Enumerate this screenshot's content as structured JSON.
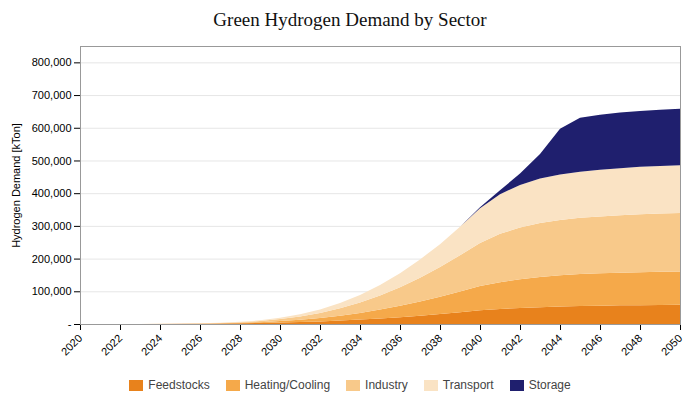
{
  "chart_data": {
    "type": "area",
    "stacked": true,
    "title": "Green Hydrogen Demand by Sector",
    "ylabel": "Hydrogen Demand [kTon]",
    "x": [
      2020,
      2021,
      2022,
      2023,
      2024,
      2025,
      2026,
      2027,
      2028,
      2029,
      2030,
      2031,
      2032,
      2033,
      2034,
      2035,
      2036,
      2037,
      2038,
      2039,
      2040,
      2041,
      2042,
      2043,
      2044,
      2045,
      2046,
      2047,
      2048,
      2049,
      2050
    ],
    "series": [
      {
        "name": "Feedstocks",
        "color": "#E8821C",
        "values": [
          0,
          0,
          50,
          100,
          200,
          400,
          700,
          1200,
          2000,
          3000,
          4500,
          6000,
          8000,
          10500,
          13500,
          17000,
          21000,
          25500,
          30500,
          36000,
          42000,
          46000,
          49000,
          51500,
          53500,
          55000,
          56000,
          57000,
          57500,
          58000,
          58500
        ]
      },
      {
        "name": "Heating/Cooling",
        "color": "#F5A94A",
        "values": [
          0,
          0,
          30,
          60,
          120,
          250,
          500,
          900,
          1600,
          2700,
          4500,
          7000,
          10500,
          15000,
          20500,
          27000,
          34500,
          43000,
          52500,
          63000,
          74000,
          82000,
          88000,
          92500,
          95500,
          97500,
          99000,
          100000,
          101000,
          101500,
          102000
        ]
      },
      {
        "name": "Industry",
        "color": "#F8C98A",
        "values": [
          0,
          0,
          30,
          60,
          120,
          250,
          500,
          900,
          1800,
          3300,
          6000,
          10000,
          15500,
          22500,
          31500,
          43000,
          57000,
          73000,
          91000,
          111000,
          132000,
          148000,
          158000,
          165000,
          169000,
          172000,
          174000,
          175500,
          177000,
          178000,
          179000
        ]
      },
      {
        "name": "Transport",
        "color": "#FAE3C4",
        "values": [
          0,
          0,
          10,
          30,
          70,
          150,
          300,
          600,
          1200,
          2200,
          4000,
          6500,
          10500,
          16000,
          23000,
          32000,
          43000,
          56000,
          70000,
          87000,
          106000,
          121000,
          130000,
          136000,
          139000,
          141000,
          143000,
          144000,
          145000,
          145500,
          146000
        ]
      },
      {
        "name": "Storage",
        "color": "#1F1F6E",
        "values": [
          0,
          0,
          0,
          0,
          0,
          0,
          0,
          0,
          0,
          0,
          0,
          0,
          0,
          0,
          0,
          0,
          0,
          0,
          0,
          0,
          3000,
          12000,
          35000,
          75000,
          140000,
          165000,
          168000,
          170000,
          171000,
          172000,
          172500
        ]
      }
    ],
    "xlim": [
      2020,
      2050
    ],
    "ylim": [
      0,
      850000
    ],
    "xticks": [
      2020,
      2022,
      2024,
      2026,
      2028,
      2030,
      2032,
      2034,
      2036,
      2038,
      2040,
      2042,
      2044,
      2046,
      2048,
      2050
    ],
    "yticks": [
      {
        "value": 0,
        "label": "-"
      },
      {
        "value": 100000,
        "label": "100,000"
      },
      {
        "value": 200000,
        "label": "200,000"
      },
      {
        "value": 300000,
        "label": "300,000"
      },
      {
        "value": 400000,
        "label": "400,000"
      },
      {
        "value": 500000,
        "label": "500,000"
      },
      {
        "value": 600000,
        "label": "600,000"
      },
      {
        "value": 700000,
        "label": "700,000"
      },
      {
        "value": 800000,
        "label": "800,000"
      }
    ],
    "grid": true,
    "legend": "bottom"
  }
}
